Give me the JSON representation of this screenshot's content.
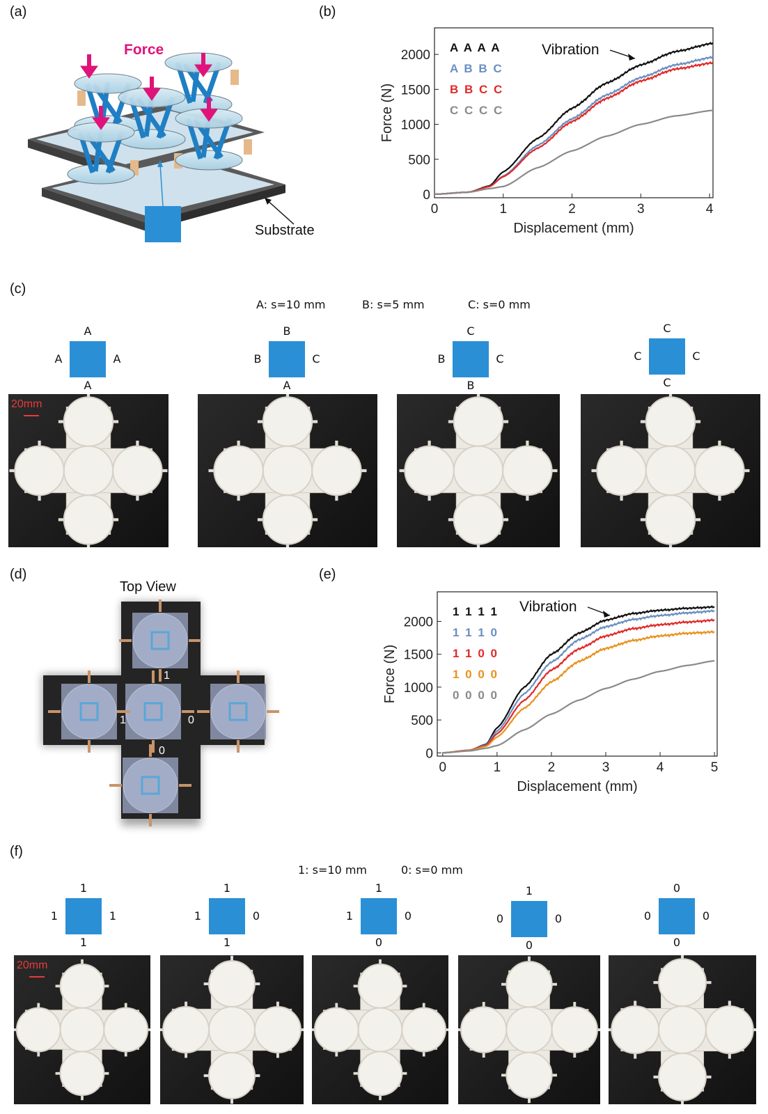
{
  "panels": {
    "a": "(a)",
    "b": "(b)",
    "c": "(c)",
    "d": "(d)",
    "e": "(e)",
    "f": "(f)"
  },
  "panel_a": {
    "force_label": "Force",
    "substrate_label": "Substrate",
    "colors": {
      "force": "#e0137a",
      "beam": "#1f7fc4",
      "pad": "#e5b98c",
      "frame": "#4a4a4a"
    }
  },
  "panel_c": {
    "legend": {
      "a": "A: s=10 mm",
      "b": "B: s=5 mm",
      "c": "C: s=0 mm"
    },
    "configs": [
      {
        "top": "A",
        "left": "A",
        "right": "A",
        "bottom": "A"
      },
      {
        "top": "B",
        "left": "B",
        "right": "C",
        "bottom": "A"
      },
      {
        "top": "C",
        "left": "B",
        "right": "C",
        "bottom": "B"
      },
      {
        "top": "C",
        "left": "C",
        "right": "C",
        "bottom": "C"
      }
    ],
    "scale": "20mm"
  },
  "panel_d": {
    "title": "Top View",
    "labels": {
      "top": "1",
      "left": "1",
      "right": "0",
      "bottom": "0"
    }
  },
  "panel_f": {
    "legend": {
      "one": "1: s=10 mm",
      "zero": "0: s=0 mm"
    },
    "configs": [
      {
        "top": "1",
        "left": "1",
        "right": "1",
        "bottom": "1"
      },
      {
        "top": "1",
        "left": "1",
        "right": "0",
        "bottom": "1"
      },
      {
        "top": "1",
        "left": "1",
        "right": "0",
        "bottom": "0"
      },
      {
        "top": "1",
        "left": "0",
        "right": "0",
        "bottom": "0"
      },
      {
        "top": "0",
        "left": "0",
        "right": "0",
        "bottom": "0"
      }
    ],
    "scale": "20mm"
  },
  "chart_data": [
    {
      "id": "b",
      "type": "line",
      "xlabel": "Displacement (mm)",
      "ylabel": "Force (N)",
      "xlim": [
        0,
        4.05
      ],
      "ylim": [
        -50,
        2380
      ],
      "xticks": [
        0,
        1,
        2,
        3,
        4
      ],
      "yticks": [
        0,
        500,
        1000,
        1500,
        2000
      ],
      "legend_position": "top-left",
      "grid": false,
      "annotation": "Vibration",
      "series": [
        {
          "name": "A A A A",
          "color": "#111111",
          "vibrating": true,
          "x": [
            0,
            0.5,
            0.8,
            1.0,
            1.5,
            2.0,
            2.5,
            3.0,
            3.5,
            4.05
          ],
          "y": [
            0,
            30,
            120,
            320,
            800,
            1230,
            1590,
            1850,
            2040,
            2160
          ]
        },
        {
          "name": "A B B C",
          "color": "#6a8fc0",
          "vibrating": true,
          "x": [
            0,
            0.5,
            0.8,
            1.0,
            1.5,
            2.0,
            2.5,
            3.0,
            3.5,
            4.05
          ],
          "y": [
            0,
            30,
            110,
            260,
            700,
            1080,
            1420,
            1670,
            1850,
            1960
          ]
        },
        {
          "name": "B B C C",
          "color": "#e02a2a",
          "vibrating": true,
          "x": [
            0,
            0.5,
            0.8,
            1.0,
            1.5,
            2.0,
            2.5,
            3.0,
            3.5,
            4.05
          ],
          "y": [
            0,
            30,
            110,
            250,
            660,
            1040,
            1370,
            1620,
            1790,
            1880
          ]
        },
        {
          "name": "C C C C",
          "color": "#8a8a8a",
          "vibrating": false,
          "x": [
            0,
            0.5,
            0.8,
            1.0,
            1.5,
            2.0,
            2.5,
            3.0,
            3.5,
            4.05
          ],
          "y": [
            0,
            30,
            80,
            110,
            380,
            620,
            830,
            1000,
            1120,
            1200
          ]
        }
      ]
    },
    {
      "id": "e",
      "type": "line",
      "xlabel": "Displacement (mm)",
      "ylabel": "Force (N)",
      "xlim": [
        -0.1,
        5.05
      ],
      "ylim": [
        -50,
        2450
      ],
      "xticks": [
        0,
        1,
        2,
        3,
        4,
        5
      ],
      "yticks": [
        0,
        500,
        1000,
        1500,
        2000
      ],
      "legend_position": "top-left",
      "grid": false,
      "annotation": "Vibration",
      "series": [
        {
          "name": "1 1 1 1",
          "color": "#111111",
          "vibrating": true,
          "x": [
            0,
            0.5,
            0.8,
            1.0,
            1.5,
            2.0,
            2.5,
            3.0,
            3.5,
            4.0,
            4.5,
            5.0
          ],
          "y": [
            0,
            40,
            130,
            380,
            1000,
            1500,
            1820,
            2020,
            2120,
            2170,
            2200,
            2220
          ]
        },
        {
          "name": "1 1 1 0",
          "color": "#6a8fc0",
          "vibrating": true,
          "x": [
            0,
            0.5,
            0.8,
            1.0,
            1.5,
            2.0,
            2.5,
            3.0,
            3.5,
            4.0,
            4.5,
            5.0
          ],
          "y": [
            0,
            40,
            120,
            330,
            900,
            1380,
            1720,
            1920,
            2030,
            2090,
            2130,
            2160
          ]
        },
        {
          "name": "1 1 0 0",
          "color": "#e02a2a",
          "vibrating": true,
          "x": [
            0,
            0.5,
            0.8,
            1.0,
            1.5,
            2.0,
            2.5,
            3.0,
            3.5,
            4.0,
            4.5,
            5.0
          ],
          "y": [
            0,
            40,
            110,
            290,
            800,
            1260,
            1580,
            1780,
            1890,
            1950,
            1990,
            2020
          ]
        },
        {
          "name": "1 0 0 0",
          "color": "#e8921e",
          "vibrating": true,
          "x": [
            0,
            0.5,
            0.8,
            1.0,
            1.5,
            2.0,
            2.5,
            3.0,
            3.5,
            4.0,
            4.5,
            5.0
          ],
          "y": [
            0,
            35,
            100,
            240,
            680,
            1080,
            1390,
            1590,
            1710,
            1780,
            1820,
            1840
          ]
        },
        {
          "name": "0 0 0 0",
          "color": "#8a8a8a",
          "vibrating": false,
          "x": [
            0,
            0.5,
            0.8,
            1.0,
            1.5,
            2.0,
            2.5,
            3.0,
            3.5,
            4.0,
            4.5,
            5.0
          ],
          "y": [
            0,
            30,
            70,
            110,
            350,
            590,
            800,
            980,
            1120,
            1240,
            1330,
            1400
          ]
        }
      ]
    }
  ]
}
